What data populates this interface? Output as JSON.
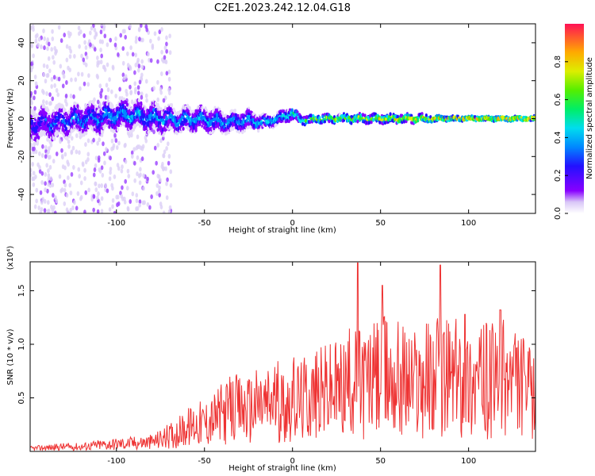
{
  "chart_data": [
    {
      "type": "heatmap",
      "title": "C2E1.2023.242.12.04.G18",
      "xlabel": "Height of straight line (km)",
      "ylabel": "Frequency (Hz)",
      "xlim": [
        -149,
        138
      ],
      "ylim": [
        -50,
        50
      ],
      "x_ticks": [
        -100,
        -50,
        0,
        50,
        100
      ],
      "y_ticks": [
        -40,
        -20,
        0,
        20,
        40
      ],
      "colorbar": {
        "label": "Normalized spectral amplitude",
        "range": [
          0,
          1
        ],
        "ticks": [
          "0.0",
          "0.2",
          "0.4",
          "0.6",
          "0.8"
        ]
      },
      "description_points": {
        "x_km": [
          -145,
          -135,
          -125,
          -115,
          -105,
          -95,
          -85,
          -75,
          -65,
          -55,
          -45,
          -35,
          -25,
          -15,
          -5,
          0,
          5,
          15,
          25,
          35,
          45,
          55,
          65,
          75,
          85,
          95,
          105,
          115,
          125,
          135
        ],
        "peak_freq_hz": [
          -3,
          -2,
          -1,
          0,
          1,
          2,
          1,
          0,
          -1,
          0,
          -1,
          -2,
          -1,
          -2,
          1,
          3,
          -1,
          0,
          0,
          0,
          0,
          0,
          0,
          0,
          0,
          0,
          0,
          0,
          0,
          0
        ],
        "spread_hz": [
          8,
          8,
          7,
          7,
          7,
          7,
          7,
          7,
          6,
          6,
          6,
          5,
          5,
          3,
          3,
          3,
          2,
          2,
          2,
          2,
          2,
          2,
          2,
          2,
          1,
          1,
          1,
          1,
          1,
          1
        ],
        "peak_amplitude": [
          0.3,
          0.35,
          0.4,
          0.4,
          0.45,
          0.45,
          0.45,
          0.45,
          0.45,
          0.45,
          0.45,
          0.45,
          0.45,
          0.5,
          0.55,
          0.6,
          0.7,
          0.75,
          0.8,
          0.8,
          0.85,
          0.85,
          0.85,
          0.9,
          0.9,
          0.95,
          0.95,
          0.95,
          0.95,
          0.95
        ]
      }
    },
    {
      "type": "line",
      "xlabel": "Height of straight line (km)",
      "ylabel": "SNR (10 * v/v)",
      "scale_label": "(x10⁴)",
      "xlim": [
        -149,
        138
      ],
      "ylim": [
        0,
        1.77
      ],
      "x_ticks": [
        -100,
        -50,
        0,
        50,
        100
      ],
      "y_ticks": [
        0.5,
        1.0,
        1.5
      ],
      "line_color": "#ee3333",
      "x": [
        -149,
        -140,
        -130,
        -120,
        -110,
        -100,
        -90,
        -80,
        -72,
        -65,
        -60,
        -55,
        -50,
        -45,
        -40,
        -35,
        -30,
        -25,
        -20,
        -15,
        -10,
        -5,
        0,
        5,
        10,
        15,
        20,
        25,
        30,
        35,
        40,
        45,
        50,
        55,
        60,
        65,
        70,
        75,
        80,
        85,
        90,
        95,
        100,
        105,
        110,
        115,
        120,
        125,
        130,
        135,
        138
      ],
      "y": [
        0.03,
        0.04,
        0.05,
        0.05,
        0.07,
        0.08,
        0.09,
        0.1,
        0.15,
        0.2,
        0.25,
        0.3,
        0.3,
        0.35,
        0.4,
        0.45,
        0.45,
        0.45,
        0.5,
        0.5,
        0.55,
        0.5,
        0.55,
        0.55,
        0.6,
        0.6,
        0.65,
        0.65,
        0.7,
        0.75,
        0.75,
        0.75,
        0.8,
        0.8,
        0.8,
        0.75,
        0.75,
        0.8,
        0.8,
        0.8,
        0.8,
        0.8,
        0.75,
        0.75,
        0.75,
        0.75,
        0.8,
        0.75,
        0.7,
        0.6,
        0.55
      ],
      "peaks": [
        {
          "x": 37,
          "y": 1.76
        },
        {
          "x": 84,
          "y": 1.74
        },
        {
          "x": 51,
          "y": 1.55
        },
        {
          "x": 98,
          "y": 1.28
        },
        {
          "x": 118,
          "y": 1.32
        }
      ]
    }
  ]
}
